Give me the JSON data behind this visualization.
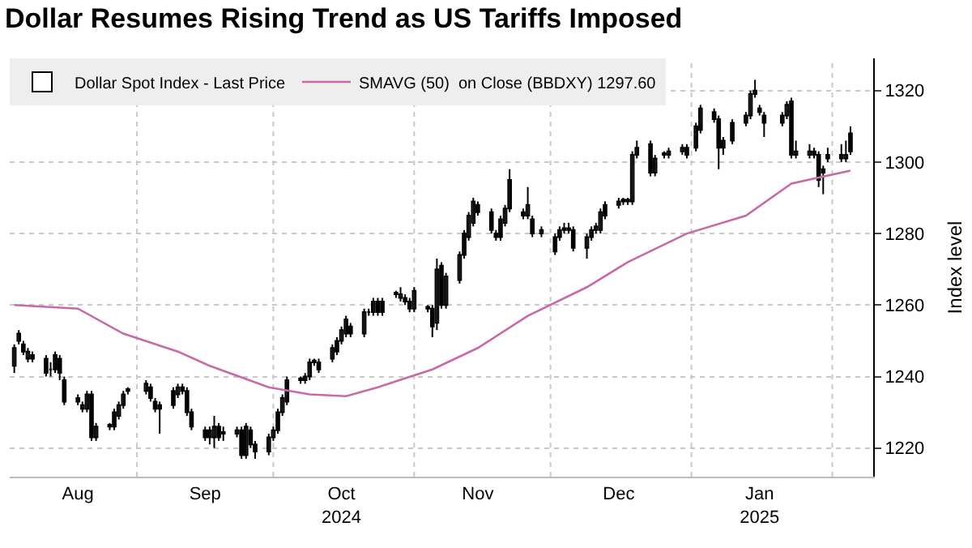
{
  "chart_data": {
    "type": "candlestick",
    "title": "Dollar Resumes Rising Trend as US Tariffs Imposed",
    "ylabel": "Index level",
    "x": [
      "2024-08-05",
      "2024-08-06",
      "2024-08-07",
      "2024-08-08",
      "2024-08-09",
      "2024-08-12",
      "2024-08-13",
      "2024-08-14",
      "2024-08-15",
      "2024-08-16",
      "2024-08-19",
      "2024-08-20",
      "2024-08-21",
      "2024-08-22",
      "2024-08-23",
      "2024-08-26",
      "2024-08-27",
      "2024-08-28",
      "2024-08-29",
      "2024-08-30",
      "2024-09-03",
      "2024-09-04",
      "2024-09-05",
      "2024-09-06",
      "2024-09-09",
      "2024-09-10",
      "2024-09-11",
      "2024-09-12",
      "2024-09-13",
      "2024-09-16",
      "2024-09-17",
      "2024-09-18",
      "2024-09-19",
      "2024-09-20",
      "2024-09-23",
      "2024-09-24",
      "2024-09-25",
      "2024-09-26",
      "2024-09-27",
      "2024-09-30",
      "2024-10-01",
      "2024-10-02",
      "2024-10-03",
      "2024-10-04",
      "2024-10-07",
      "2024-10-08",
      "2024-10-09",
      "2024-10-10",
      "2024-10-11",
      "2024-10-14",
      "2024-10-15",
      "2024-10-16",
      "2024-10-17",
      "2024-10-18",
      "2024-10-21",
      "2024-10-22",
      "2024-10-23",
      "2024-10-24",
      "2024-10-25",
      "2024-10-28",
      "2024-10-29",
      "2024-10-30",
      "2024-10-31",
      "2024-11-01",
      "2024-11-04",
      "2024-11-05",
      "2024-11-06",
      "2024-11-07",
      "2024-11-08",
      "2024-11-11",
      "2024-11-12",
      "2024-11-13",
      "2024-11-14",
      "2024-11-15",
      "2024-11-18",
      "2024-11-19",
      "2024-11-20",
      "2024-11-21",
      "2024-11-22",
      "2024-11-25",
      "2024-11-26",
      "2024-11-27",
      "2024-11-29",
      "2024-12-02",
      "2024-12-03",
      "2024-12-04",
      "2024-12-05",
      "2024-12-06",
      "2024-12-09",
      "2024-12-10",
      "2024-12-11",
      "2024-12-12",
      "2024-12-13",
      "2024-12-16",
      "2024-12-17",
      "2024-12-18",
      "2024-12-19",
      "2024-12-20",
      "2024-12-23",
      "2024-12-24",
      "2024-12-26",
      "2024-12-27",
      "2024-12-30",
      "2024-12-31",
      "2025-01-02",
      "2025-01-03",
      "2025-01-06",
      "2025-01-07",
      "2025-01-08",
      "2025-01-10",
      "2025-01-13",
      "2025-01-14",
      "2025-01-15",
      "2025-01-16",
      "2025-01-17",
      "2025-01-21",
      "2025-01-22",
      "2025-01-23",
      "2025-01-24",
      "2025-01-27",
      "2025-01-28",
      "2025-01-29",
      "2025-01-30",
      "2025-01-31",
      "2025-02-03",
      "2025-02-04",
      "2025-02-05"
    ],
    "series": [
      {
        "name": "Dollar Spot Index - Last Price",
        "color": "#000000",
        "ohlc": [
          [
            1243,
            1249,
            1241,
            1248
          ],
          [
            1250,
            1253,
            1249,
            1252
          ],
          [
            1249,
            1250,
            1246,
            1247
          ],
          [
            1245,
            1248,
            1244,
            1247
          ],
          [
            1245,
            1247,
            1244,
            1246
          ],
          [
            1245,
            1246,
            1240,
            1241
          ],
          [
            1242,
            1244,
            1240,
            1242
          ],
          [
            1242,
            1247,
            1241,
            1246
          ],
          [
            1245,
            1246,
            1239,
            1241
          ],
          [
            1239,
            1240,
            1232,
            1233
          ],
          [
            1233,
            1235,
            1232,
            1234
          ],
          [
            1231,
            1233,
            1230,
            1232
          ],
          [
            1231,
            1236,
            1230,
            1235
          ],
          [
            1235,
            1236,
            1222,
            1223
          ],
          [
            1223,
            1227,
            1222,
            1226
          ],
          [
            1226,
            1227,
            1225,
            1226.5
          ],
          [
            1226,
            1231,
            1225,
            1230
          ],
          [
            1229,
            1233,
            1228,
            1232
          ],
          [
            1232,
            1236,
            1231,
            1235
          ],
          [
            1236,
            1237,
            1235,
            1236.5
          ],
          [
            1236,
            1239,
            1235,
            1238
          ],
          [
            1237,
            1238,
            1233,
            1234
          ],
          [
            1233,
            1234,
            1230,
            1231
          ],
          [
            1231,
            1233,
            1224,
            1232
          ],
          [
            1232,
            1237,
            1231,
            1236
          ],
          [
            1235,
            1238,
            1234,
            1237
          ],
          [
            1237,
            1238,
            1235,
            1236
          ],
          [
            1236,
            1237,
            1229,
            1230
          ],
          [
            1230,
            1231,
            1225,
            1226
          ],
          [
            1225,
            1226,
            1222,
            1223
          ],
          [
            1223,
            1226,
            1221,
            1225
          ],
          [
            1223,
            1229,
            1220,
            1226
          ],
          [
            1226,
            1227,
            1222,
            1223
          ],
          [
            1224,
            1226,
            1222,
            1224.5
          ],
          [
            1224,
            1226,
            1223,
            1225
          ],
          [
            1225,
            1226,
            1217,
            1218
          ],
          [
            1218,
            1227,
            1217,
            1226
          ],
          [
            1225,
            1226,
            1220,
            1221
          ],
          [
            1221,
            1222,
            1217,
            1219
          ],
          [
            1219,
            1224,
            1218,
            1223
          ],
          [
            1223,
            1226,
            1222,
            1225
          ],
          [
            1225,
            1231,
            1224,
            1230
          ],
          [
            1230,
            1235,
            1229,
            1234
          ],
          [
            1233,
            1240,
            1232,
            1239
          ],
          [
            1239,
            1240,
            1238,
            1239.5
          ],
          [
            1239,
            1241,
            1238,
            1240
          ],
          [
            1240,
            1245,
            1239,
            1244
          ],
          [
            1244,
            1245,
            1243,
            1244.5
          ],
          [
            1244,
            1245,
            1241,
            1242
          ],
          [
            1245,
            1249,
            1244,
            1248
          ],
          [
            1247,
            1251,
            1246,
            1250
          ],
          [
            1250,
            1254,
            1249,
            1253
          ],
          [
            1252,
            1257,
            1251,
            1256
          ],
          [
            1254,
            1255,
            1251,
            1252
          ],
          [
            1252,
            1259,
            1251,
            1258
          ],
          [
            1258,
            1259,
            1257,
            1258
          ],
          [
            1258,
            1262,
            1257,
            1261
          ],
          [
            1261,
            1262,
            1257,
            1258
          ],
          [
            1261,
            1262,
            1257,
            1258
          ],
          [
            1263,
            1264,
            1262,
            1263.5
          ],
          [
            1262,
            1265,
            1261,
            1263
          ],
          [
            1262,
            1263,
            1260,
            1261
          ],
          [
            1261,
            1262,
            1258,
            1259
          ],
          [
            1259,
            1265,
            1258,
            1264
          ],
          [
            1259,
            1260,
            1258,
            1259.5
          ],
          [
            1259,
            1260,
            1251,
            1254
          ],
          [
            1255,
            1273,
            1253,
            1270
          ],
          [
            1271,
            1272,
            1259,
            1260
          ],
          [
            1260,
            1269,
            1259,
            1268
          ],
          [
            1267,
            1275,
            1266,
            1274
          ],
          [
            1274,
            1281,
            1273,
            1280
          ],
          [
            1279,
            1286,
            1278,
            1285
          ],
          [
            1283,
            1290,
            1282,
            1289
          ],
          [
            1288,
            1289,
            1285,
            1286
          ],
          [
            1286,
            1287,
            1280,
            1281
          ],
          [
            1280,
            1281,
            1278,
            1279
          ],
          [
            1279,
            1285,
            1278,
            1284
          ],
          [
            1283,
            1288,
            1282,
            1287
          ],
          [
            1287,
            1298,
            1286,
            1295
          ],
          [
            1286,
            1287,
            1284,
            1285
          ],
          [
            1285,
            1293,
            1284,
            1288
          ],
          [
            1284,
            1285,
            1279,
            1280
          ],
          [
            1280,
            1282,
            1279,
            1281
          ],
          [
            1279,
            1280,
            1274,
            1275
          ],
          [
            1279,
            1282,
            1278,
            1281
          ],
          [
            1281,
            1283,
            1280,
            1281.5
          ],
          [
            1281.5,
            1283,
            1280,
            1281
          ],
          [
            1281,
            1282,
            1275,
            1276
          ],
          [
            1276,
            1280,
            1273,
            1279
          ],
          [
            1279,
            1282,
            1278,
            1281
          ],
          [
            1281,
            1283,
            1280,
            1282
          ],
          [
            1281,
            1287,
            1280,
            1286
          ],
          [
            1285,
            1289,
            1284,
            1288
          ],
          [
            1288,
            1290,
            1287,
            1289
          ],
          [
            1289,
            1290,
            1288,
            1289.5
          ],
          [
            1289,
            1290,
            1288,
            1289.5
          ],
          [
            1289,
            1303,
            1288,
            1302
          ],
          [
            1302,
            1306,
            1301,
            1304
          ],
          [
            1305,
            1306,
            1296,
            1297
          ],
          [
            1297,
            1302,
            1296,
            1301
          ],
          [
            1302,
            1303,
            1301,
            1302.5
          ],
          [
            1302,
            1304,
            1301,
            1303
          ],
          [
            1303,
            1305,
            1302,
            1304
          ],
          [
            1302,
            1305,
            1301,
            1304
          ],
          [
            1304,
            1311,
            1303,
            1310
          ],
          [
            1309,
            1316,
            1308,
            1315
          ],
          [
            1314,
            1315,
            1311,
            1312
          ],
          [
            1312,
            1313,
            1298,
            1304
          ],
          [
            1304,
            1307,
            1302,
            1306
          ],
          [
            1306,
            1312,
            1305,
            1311
          ],
          [
            1311,
            1314,
            1310,
            1313
          ],
          [
            1313,
            1320,
            1312,
            1319
          ],
          [
            1319,
            1323,
            1318,
            1320
          ],
          [
            1315,
            1316,
            1313,
            1314
          ],
          [
            1313,
            1314,
            1307,
            1311
          ],
          [
            1311,
            1314,
            1310,
            1313
          ],
          [
            1313,
            1317,
            1312,
            1316
          ],
          [
            1317,
            1318,
            1301,
            1302
          ],
          [
            1302,
            1306,
            1301,
            1303
          ],
          [
            1302,
            1305,
            1301,
            1303
          ],
          [
            1303,
            1304,
            1301,
            1302
          ],
          [
            1302,
            1303,
            1293,
            1295
          ],
          [
            1298,
            1299,
            1291,
            1297
          ],
          [
            1301,
            1304,
            1300,
            1302
          ],
          [
            1301,
            1305,
            1300,
            1302
          ],
          [
            1301,
            1306,
            1300,
            1302
          ],
          [
            1303,
            1310,
            1302,
            1308
          ]
        ]
      },
      {
        "type": "line",
        "name": "SMAVG (50)  on Close (BBDXY) 1297.60",
        "color": "#c86aa6",
        "x": [
          "2024-08-05",
          "2024-08-19",
          "2024-08-29",
          "2024-09-10",
          "2024-09-17",
          "2024-09-30",
          "2024-10-09",
          "2024-10-17",
          "2024-10-24",
          "2024-11-05",
          "2024-11-15",
          "2024-11-26",
          "2024-12-09",
          "2024-12-18",
          "2024-12-31",
          "2025-01-13",
          "2025-01-23",
          "2025-02-05"
        ],
        "values": [
          1260,
          1259,
          1252,
          1247,
          1243,
          1237,
          1235,
          1234.5,
          1237,
          1242,
          1248,
          1257,
          1265,
          1272,
          1280,
          1285,
          1294,
          1297.6
        ]
      }
    ],
    "xlim": [
      "2024-08-04",
      "2025-02-10"
    ],
    "xticks": [
      {
        "value": "2024-08-19",
        "label": "Aug"
      },
      {
        "value": "2024-09-01",
        "label": null
      },
      {
        "value": "2024-09-16",
        "label": "Sep"
      },
      {
        "value": "2024-10-01",
        "label": null
      },
      {
        "value": "2024-10-16",
        "label": "Oct\n2024"
      },
      {
        "value": "2024-11-01",
        "label": null
      },
      {
        "value": "2024-11-15",
        "label": "Nov"
      },
      {
        "value": "2024-12-01",
        "label": null
      },
      {
        "value": "2024-12-16",
        "label": "Dec"
      },
      {
        "value": "2025-01-01",
        "label": null
      },
      {
        "value": "2025-01-16",
        "label": "Jan\n2025"
      },
      {
        "value": "2025-02-01",
        "label": null
      }
    ],
    "ylim": [
      1212,
      1329
    ],
    "yticks": [
      1220,
      1240,
      1260,
      1280,
      1300,
      1320
    ],
    "grid": true,
    "legend": "top left"
  }
}
